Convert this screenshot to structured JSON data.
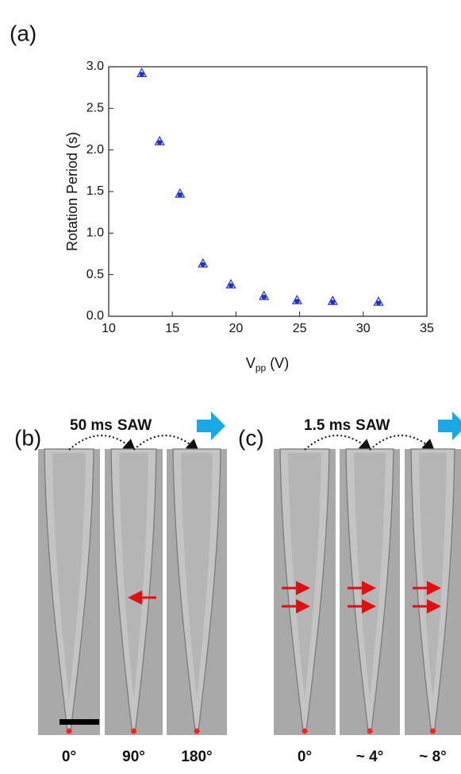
{
  "chart_data": {
    "type": "scatter",
    "panel_label": "(a)",
    "y_label": "Rotation Period (s)",
    "x_label": {
      "symbol": "V",
      "subscript": "pp",
      "unit": "(V)"
    },
    "x": [
      12.6,
      14.0,
      15.6,
      17.4,
      19.6,
      22.2,
      24.8,
      27.6,
      31.2
    ],
    "values": [
      2.92,
      2.1,
      1.47,
      0.63,
      0.38,
      0.24,
      0.19,
      0.18,
      0.17
    ],
    "color": "#1f2fd0",
    "xlim": [
      10,
      35
    ],
    "ylim": [
      0,
      3
    ],
    "xticks": [
      10,
      15,
      20,
      25,
      30,
      35
    ],
    "yticks": [
      {
        "value": 0,
        "label": "0.0"
      },
      0.5,
      {
        "value": 1,
        "label": "1.0"
      },
      1.5,
      {
        "value": 2,
        "label": "2.0"
      },
      2.5,
      {
        "value": 3,
        "label": "3.0"
      }
    ]
  },
  "panels": [
    {
      "label": "(b)",
      "pulse": "50 ms",
      "wave": "SAW",
      "angles": [
        "0°",
        "90°",
        "180°"
      ]
    },
    {
      "label": "(c)",
      "pulse": "1.5 ms",
      "wave": "SAW",
      "angles": [
        "0°",
        "~ 4°",
        "~ 8°"
      ]
    }
  ]
}
